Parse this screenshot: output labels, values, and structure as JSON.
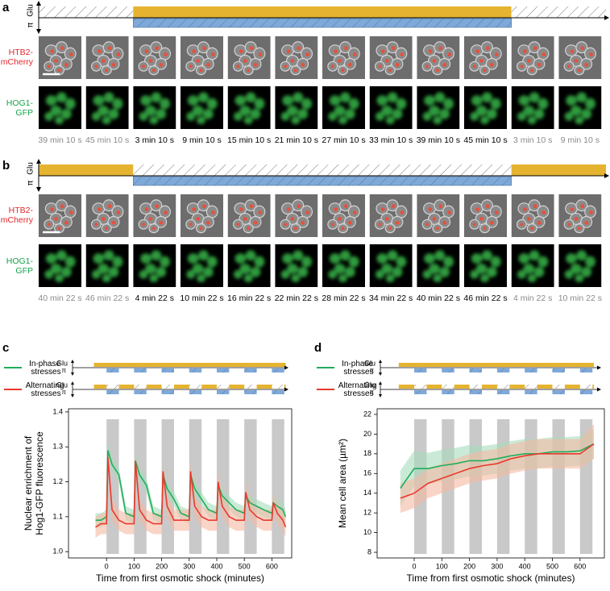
{
  "panels": [
    {
      "label": "a",
      "glu_label": "Glu",
      "pi_label": "π",
      "rows": [
        [
          "HTB2-",
          "mCherry"
        ],
        [
          "HOG1-",
          "GFP"
        ]
      ],
      "times": [
        "39 min 10 s",
        "45 min 10 s",
        "3 min 10 s",
        "9 min 10 s",
        "15 min 10 s",
        "21 min 10 s",
        "27 min 10 s",
        "33 min 10 s",
        "39 min 10 s",
        "45 min 10 s",
        "3 min 10 s",
        "9 min 10 s"
      ]
    },
    {
      "label": "b",
      "glu_label": "Glu",
      "pi_label": "π",
      "rows": [
        [
          "HTB2-",
          "mCherry"
        ],
        [
          "HOG1-",
          "GFP"
        ]
      ],
      "times": [
        "40 min 22 s",
        "46 min 22 s",
        "4 min 22 s",
        "10 min 22 s",
        "16 min 22 s",
        "22 min 22 s",
        "28 min 22 s",
        "34 min 22 s",
        "40 min 22 s",
        "46 min 22 s",
        "4 min 22 s",
        "10 min 22 s"
      ]
    }
  ],
  "chart_data": [
    {
      "type": "line",
      "label": "c",
      "glu_label": "Glu",
      "pi_label": "π",
      "xlabel": "Time from first osmotic shock (minutes)",
      "ylabel": [
        "Nuclear enrichment of",
        "Hog1-GFP fluorescence"
      ],
      "xlim": [
        -138,
        672
      ],
      "ylim": [
        0.982,
        1.409
      ],
      "xticks": [
        0,
        100,
        200,
        300,
        400,
        500,
        600
      ],
      "yticks": [
        {
          "value": 1,
          "label": "1.0"
        },
        1.1,
        1.2,
        1.3,
        1.4
      ],
      "shaded_intervals": [
        [
          0,
          45
        ],
        [
          100,
          145
        ],
        [
          200,
          245
        ],
        [
          300,
          345
        ],
        [
          400,
          445
        ],
        [
          500,
          545
        ],
        [
          600,
          645
        ]
      ],
      "x": [
        -40,
        -20,
        0,
        5,
        20,
        45,
        70,
        100,
        105,
        120,
        145,
        170,
        200,
        205,
        220,
        245,
        270,
        300,
        305,
        320,
        345,
        370,
        400,
        405,
        420,
        445,
        470,
        500,
        505,
        520,
        545,
        570,
        600,
        605,
        620,
        640,
        650
      ],
      "series": [
        {
          "name": "In-phase stresses",
          "color": "#1fae5b",
          "band_color": "#a7dcbc",
          "values": [
            1.09,
            1.09,
            1.1,
            1.29,
            1.25,
            1.22,
            1.11,
            1.1,
            1.26,
            1.22,
            1.19,
            1.11,
            1.1,
            1.22,
            1.18,
            1.15,
            1.11,
            1.1,
            1.22,
            1.18,
            1.15,
            1.12,
            1.11,
            1.19,
            1.16,
            1.14,
            1.12,
            1.11,
            1.16,
            1.14,
            1.13,
            1.12,
            1.11,
            1.14,
            1.13,
            1.12,
            1.1
          ],
          "lower": [
            1.07,
            1.07,
            1.08,
            1.27,
            1.23,
            1.2,
            1.09,
            1.08,
            1.24,
            1.2,
            1.17,
            1.09,
            1.08,
            1.2,
            1.16,
            1.13,
            1.09,
            1.08,
            1.2,
            1.16,
            1.13,
            1.1,
            1.09,
            1.17,
            1.14,
            1.12,
            1.1,
            1.09,
            1.14,
            1.12,
            1.11,
            1.1,
            1.09,
            1.12,
            1.11,
            1.1,
            1.08
          ],
          "upper": [
            1.11,
            1.11,
            1.12,
            1.31,
            1.27,
            1.24,
            1.13,
            1.12,
            1.28,
            1.24,
            1.21,
            1.13,
            1.12,
            1.24,
            1.2,
            1.17,
            1.13,
            1.12,
            1.24,
            1.2,
            1.17,
            1.14,
            1.13,
            1.21,
            1.18,
            1.16,
            1.14,
            1.13,
            1.18,
            1.16,
            1.15,
            1.14,
            1.13,
            1.16,
            1.15,
            1.14,
            1.12
          ]
        },
        {
          "name": "Alternating stresses",
          "color": "#e83a2d",
          "band_color": "#f5b9a3",
          "values": [
            1.07,
            1.08,
            1.08,
            1.27,
            1.12,
            1.09,
            1.08,
            1.08,
            1.26,
            1.12,
            1.09,
            1.08,
            1.08,
            1.23,
            1.13,
            1.09,
            1.09,
            1.09,
            1.23,
            1.13,
            1.1,
            1.09,
            1.09,
            1.2,
            1.13,
            1.1,
            1.09,
            1.09,
            1.17,
            1.12,
            1.1,
            1.09,
            1.09,
            1.14,
            1.11,
            1.09,
            1.07
          ],
          "lower": [
            1.04,
            1.05,
            1.05,
            1.24,
            1.09,
            1.06,
            1.05,
            1.05,
            1.23,
            1.09,
            1.06,
            1.05,
            1.05,
            1.2,
            1.1,
            1.06,
            1.06,
            1.06,
            1.2,
            1.1,
            1.07,
            1.06,
            1.06,
            1.17,
            1.1,
            1.07,
            1.06,
            1.06,
            1.14,
            1.09,
            1.07,
            1.06,
            1.06,
            1.11,
            1.08,
            1.06,
            1.04
          ],
          "upper": [
            1.1,
            1.11,
            1.11,
            1.3,
            1.15,
            1.12,
            1.11,
            1.11,
            1.29,
            1.15,
            1.12,
            1.11,
            1.11,
            1.26,
            1.16,
            1.12,
            1.12,
            1.12,
            1.26,
            1.16,
            1.13,
            1.12,
            1.12,
            1.23,
            1.16,
            1.13,
            1.12,
            1.12,
            1.2,
            1.15,
            1.13,
            1.12,
            1.12,
            1.17,
            1.14,
            1.12,
            1.1
          ]
        }
      ]
    },
    {
      "type": "line",
      "label": "d",
      "glu_label": "Glu",
      "pi_label": "π",
      "xlabel": "Time from first osmotic shock (minutes)",
      "ylabel": [
        "Mean cell area (µm²)"
      ],
      "xlim": [
        -134,
        688
      ],
      "ylim": [
        7.43,
        22.57
      ],
      "xticks": [
        0,
        100,
        200,
        300,
        400,
        500,
        600
      ],
      "yticks": [
        8,
        10,
        12,
        14,
        16,
        18,
        20,
        22
      ],
      "shaded_intervals": [
        [
          0,
          45
        ],
        [
          100,
          145
        ],
        [
          200,
          245
        ],
        [
          300,
          345
        ],
        [
          400,
          445
        ],
        [
          500,
          545
        ],
        [
          600,
          645
        ]
      ],
      "x": [
        -50,
        0,
        50,
        100,
        150,
        200,
        250,
        300,
        350,
        400,
        450,
        500,
        550,
        600,
        650
      ],
      "series": [
        {
          "name": "In-phase stresses",
          "color": "#1fae5b",
          "band_color": "#a7dcbc",
          "values": [
            14.5,
            16.5,
            16.5,
            16.8,
            17,
            17.3,
            17.3,
            17.5,
            17.8,
            18,
            18,
            18.2,
            18.2,
            18.3,
            19
          ],
          "lower": [
            12.7,
            14.7,
            14.9,
            15.2,
            15.4,
            15.7,
            15.8,
            16,
            16.3,
            16.5,
            16.5,
            16.7,
            16.7,
            16.8,
            17.5
          ],
          "upper": [
            16.3,
            18.3,
            18.1,
            18.4,
            18.6,
            18.9,
            18.8,
            19,
            19.3,
            19.5,
            19.5,
            19.7,
            19.7,
            19.8,
            20.5
          ]
        },
        {
          "name": "Alternating stresses",
          "color": "#e83a2d",
          "band_color": "#f5b9a3",
          "values": [
            13.5,
            14,
            15,
            15.5,
            16,
            16.5,
            16.8,
            17,
            17.5,
            17.8,
            18,
            18,
            18,
            18,
            19
          ],
          "lower": [
            12,
            12.5,
            13.5,
            14,
            14.5,
            15,
            15.3,
            15.5,
            16,
            16.3,
            16.5,
            16.5,
            16.5,
            16.5,
            17.5
          ],
          "upper": [
            15,
            15.5,
            16.5,
            17,
            17.5,
            18,
            18.3,
            18.5,
            19,
            19.3,
            19.5,
            19.5,
            19.5,
            19.5,
            21
          ]
        }
      ]
    }
  ]
}
